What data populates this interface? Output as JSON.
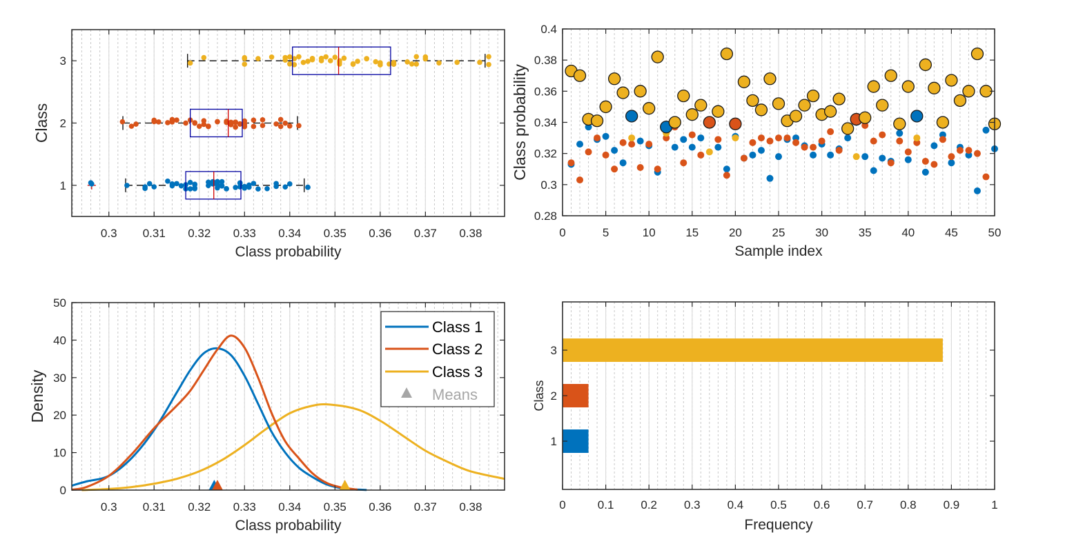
{
  "colors": {
    "class1": "#0072BD",
    "class2": "#D95319",
    "class3": "#EDB120",
    "box": "#0000A0",
    "median": "#D00000",
    "means_legend": "#a6a6a6"
  },
  "chart_data": [
    {
      "id": "boxplot",
      "type": "boxplot-horizontal",
      "title": "",
      "xlabel": "Class probability",
      "ylabel": "Class",
      "xlim": [
        0.2918,
        0.3875
      ],
      "ylim": [
        0.5,
        3.5
      ],
      "xticks": [
        0.3,
        0.31,
        0.32,
        0.33,
        0.34,
        0.35,
        0.36,
        0.37,
        0.38
      ],
      "xtick_labels": [
        "0.3",
        "0.31",
        "0.32",
        "0.33",
        "0.34",
        "0.35",
        "0.36",
        "0.37",
        "0.38"
      ],
      "yticks": [
        1,
        2,
        3
      ],
      "ytick_labels": [
        "1",
        "2",
        "3"
      ],
      "grid": "major solid + minor dotted (x)",
      "boxes": [
        {
          "class": 1,
          "whisker_low": 0.3037,
          "q1": 0.317,
          "median": 0.3232,
          "q3": 0.3292,
          "whisker_high": 0.3432,
          "outliers": [
            0.2962
          ]
        },
        {
          "class": 2,
          "whisker_low": 0.3031,
          "q1": 0.318,
          "median": 0.3264,
          "q3": 0.3295,
          "whisker_high": 0.3417,
          "outliers": []
        },
        {
          "class": 3,
          "whisker_low": 0.3174,
          "q1": 0.3406,
          "median": 0.3508,
          "q3": 0.3623,
          "whisker_high": 0.3832,
          "outliers": []
        }
      ]
    },
    {
      "id": "scatter",
      "type": "scatter",
      "title": "",
      "xlabel": "Sample index",
      "ylabel": "Class probability",
      "xlim": [
        0,
        50
      ],
      "ylim": [
        0.28,
        0.4
      ],
      "xticks": [
        0,
        5,
        10,
        15,
        20,
        25,
        30,
        35,
        40,
        45,
        50
      ],
      "xtick_labels": [
        "0",
        "5",
        "10",
        "15",
        "20",
        "25",
        "30",
        "35",
        "40",
        "45",
        "50"
      ],
      "yticks": [
        0.28,
        0.3,
        0.32,
        0.34,
        0.36,
        0.38,
        0.4
      ],
      "ytick_labels": [
        "0.28",
        "0.3",
        "0.32",
        "0.34",
        "0.36",
        "0.38",
        "0.4"
      ],
      "grid": "x major solid + minor dotted",
      "note": "large outlined marker = class with the highest probability for that sample",
      "series": [
        {
          "name": "Class 1",
          "values": [
            0.313,
            0.326,
            0.337,
            0.329,
            0.331,
            0.322,
            0.314,
            0.344,
            0.328,
            0.325,
            0.308,
            0.337,
            0.324,
            0.329,
            0.324,
            0.33,
            0.339,
            0.324,
            0.31,
            0.331,
            0.317,
            0.319,
            0.322,
            0.304,
            0.318,
            0.329,
            0.33,
            0.325,
            0.319,
            0.326,
            0.319,
            0.323,
            0.33,
            0.34,
            0.318,
            0.309,
            0.317,
            0.315,
            0.333,
            0.316,
            0.344,
            0.308,
            0.325,
            0.332,
            0.314,
            0.324,
            0.319,
            0.296,
            0.335,
            0.323
          ]
        },
        {
          "name": "Class 2",
          "values": [
            0.314,
            0.303,
            0.321,
            0.33,
            0.319,
            0.31,
            0.327,
            0.326,
            0.311,
            0.326,
            0.31,
            0.33,
            0.337,
            0.314,
            0.332,
            0.319,
            0.34,
            0.329,
            0.306,
            0.339,
            0.317,
            0.327,
            0.33,
            0.328,
            0.33,
            0.33,
            0.327,
            0.324,
            0.324,
            0.328,
            0.334,
            0.322,
            0.334,
            0.342,
            0.338,
            0.328,
            0.332,
            0.314,
            0.328,
            0.321,
            0.327,
            0.315,
            0.313,
            0.329,
            0.318,
            0.322,
            0.322,
            0.32,
            0.305,
            0.338
          ]
        },
        {
          "name": "Class 3",
          "values": [
            0.373,
            0.37,
            0.342,
            0.341,
            0.35,
            0.368,
            0.359,
            0.33,
            0.36,
            0.349,
            0.382,
            0.333,
            0.34,
            0.357,
            0.345,
            0.351,
            0.321,
            0.347,
            0.384,
            0.33,
            0.366,
            0.354,
            0.348,
            0.368,
            0.352,
            0.341,
            0.344,
            0.351,
            0.357,
            0.345,
            0.347,
            0.355,
            0.336,
            0.318,
            0.343,
            0.363,
            0.351,
            0.37,
            0.339,
            0.363,
            0.33,
            0.377,
            0.362,
            0.34,
            0.367,
            0.354,
            0.36,
            0.384,
            0.36,
            0.339
          ]
        }
      ]
    },
    {
      "id": "density",
      "type": "line",
      "title": "",
      "xlabel": "Class probability",
      "ylabel": "Density",
      "xlim": [
        0.2918,
        0.3875
      ],
      "ylim": [
        0,
        50
      ],
      "xticks": [
        0.3,
        0.31,
        0.32,
        0.33,
        0.34,
        0.35,
        0.36,
        0.37,
        0.38
      ],
      "xtick_labels": [
        "0.3",
        "0.31",
        "0.32",
        "0.33",
        "0.34",
        "0.35",
        "0.36",
        "0.37",
        "0.38"
      ],
      "yticks": [
        0,
        10,
        20,
        30,
        40,
        50
      ],
      "ytick_labels": [
        "0",
        "10",
        "20",
        "30",
        "40",
        "50"
      ],
      "grid": "x major solid + minor dotted",
      "legend": {
        "placement": "top-right",
        "entries": [
          "Class 1",
          "Class 2",
          "Class 3",
          "Means"
        ]
      },
      "series": [
        {
          "name": "Class 1",
          "mean": 0.3233,
          "x": [
            0.2918,
            0.295,
            0.3,
            0.305,
            0.31,
            0.315,
            0.318,
            0.321,
            0.324,
            0.327,
            0.33,
            0.333,
            0.336,
            0.339,
            0.342,
            0.345,
            0.348,
            0.351,
            0.354,
            0.357
          ],
          "y": [
            1.2,
            2.3,
            3.8,
            8.5,
            16,
            26,
            32,
            36.5,
            37.8,
            36,
            30.5,
            23,
            15.5,
            10,
            6,
            3.5,
            1.6,
            0.6,
            0.2,
            0.05
          ]
        },
        {
          "name": "Class 2",
          "mean": 0.324,
          "x": [
            0.2918,
            0.295,
            0.3,
            0.305,
            0.31,
            0.315,
            0.318,
            0.321,
            0.324,
            0.327,
            0.33,
            0.333,
            0.336,
            0.339,
            0.342,
            0.345,
            0.348,
            0.351,
            0.355
          ],
          "y": [
            0.1,
            0.8,
            3.8,
            9.5,
            16.5,
            22.5,
            26.5,
            32,
            37.5,
            41.2,
            38,
            30,
            20.5,
            13,
            8.5,
            4.5,
            2,
            0.8,
            0.1
          ]
        },
        {
          "name": "Class 3",
          "mean": 0.3522,
          "x": [
            0.294,
            0.3,
            0.305,
            0.31,
            0.315,
            0.32,
            0.325,
            0.33,
            0.335,
            0.34,
            0.345,
            0.349,
            0.355,
            0.36,
            0.365,
            0.37,
            0.375,
            0.38,
            0.3875
          ],
          "y": [
            0,
            0.3,
            0.8,
            1.7,
            3,
            5,
            8,
            12,
            16.5,
            20.5,
            22.5,
            22.8,
            21.5,
            18.5,
            14.5,
            10.5,
            7.5,
            5,
            3
          ]
        }
      ]
    },
    {
      "id": "frequency",
      "type": "bar",
      "orientation": "horizontal",
      "title": "",
      "xlabel": "Frequency",
      "ylabel": "Class",
      "xlim": [
        0,
        1
      ],
      "ylim": [
        -0.06,
        4.06
      ],
      "xticks": [
        0,
        0.1,
        0.2,
        0.3,
        0.4,
        0.5,
        0.6,
        0.7,
        0.8,
        0.9,
        1
      ],
      "xtick_labels": [
        "0",
        "0.1",
        "0.2",
        "0.3",
        "0.4",
        "0.5",
        "0.6",
        "0.7",
        "0.8",
        "0.9",
        "1"
      ],
      "categories": [
        "1",
        "2",
        "3"
      ],
      "values": [
        0.06,
        0.06,
        0.88
      ],
      "grid": "x major solid + minor dotted"
    }
  ]
}
